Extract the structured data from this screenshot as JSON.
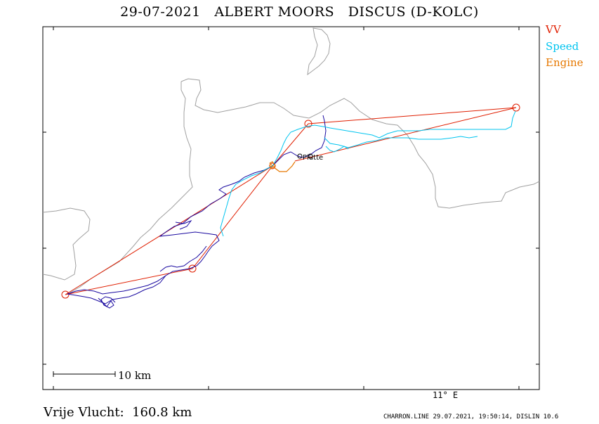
{
  "header": {
    "title": "29-07-2021   ALBERT MOORS   DISCUS (D-KOLC)"
  },
  "legend": {
    "vv": "VV",
    "speed": "Speed",
    "engine": "Engine"
  },
  "colors": {
    "vv": "#e01e00",
    "speed": "#00c4ef",
    "engine": "#e67800",
    "track": "#1a0aa0",
    "coast": "#a0a0a0"
  },
  "map": {
    "scale_label": "10 km",
    "longitude_label": "11° E",
    "place_label": "Plütte"
  },
  "footer": {
    "distance": "Vrije Vlucht:  160.8 km",
    "program": "CHARRON.LINE 29.07.2021, 19:50:14, DISLIN 10.6"
  }
}
